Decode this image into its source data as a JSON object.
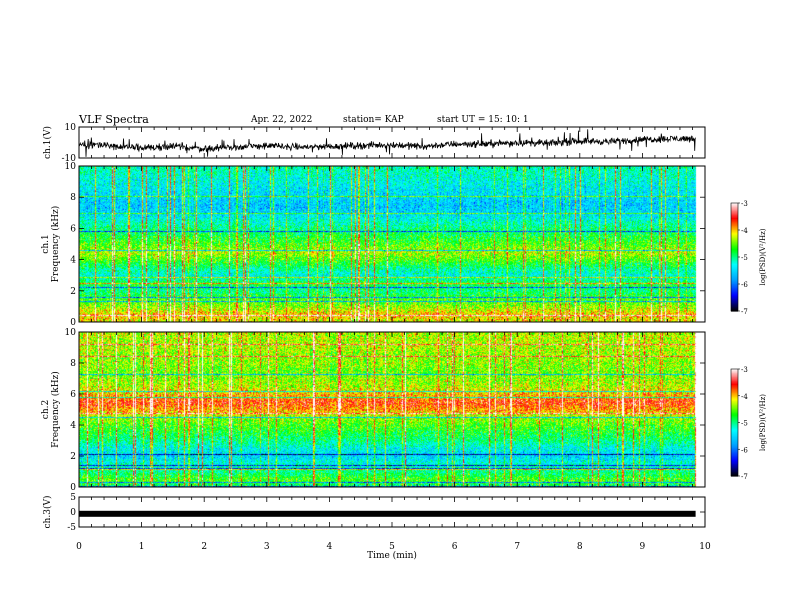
{
  "header": {
    "title": "VLF Spectra",
    "date": "Apr. 22, 2022",
    "station": "station= KAP",
    "start": "start  UT  =   15: 10: 1"
  },
  "chart_data": [
    {
      "type": "line",
      "panel": "ch1-waveform",
      "ylabel": "ch.1(V)",
      "ylim": [
        -10,
        10
      ],
      "yticks": [
        "10",
        "-10"
      ],
      "xlim": [
        0,
        10
      ],
      "data_end_min": 9.85,
      "color": "#000000",
      "trend": {
        "x": [
          0.0,
          0.3,
          0.6,
          1.0,
          1.5,
          2.0,
          2.5,
          3.0,
          3.5,
          4.0,
          4.5,
          5.0,
          5.5,
          6.0,
          6.5,
          7.0,
          7.5,
          8.0,
          8.5,
          9.0,
          9.5,
          9.85
        ],
        "y": [
          -2,
          -1,
          -3,
          -3.5,
          -2.5,
          -4,
          -3,
          -2,
          -3,
          -2.5,
          -2,
          -1.5,
          -2.5,
          -1,
          -1,
          0,
          -0.5,
          1,
          0.5,
          2,
          2.5,
          2.5
        ]
      }
    },
    {
      "type": "heatmap",
      "panel": "ch1-spectrogram",
      "ylabel": "ch.1\nFrequency (kHz)",
      "ylim": [
        0,
        10
      ],
      "yticks": [
        "0",
        "2",
        "4",
        "6",
        "8",
        "10"
      ],
      "xlim": [
        0,
        10
      ],
      "data_end_min": 9.85,
      "band_profile": {
        "freq_khz": [
          0,
          0.5,
          1,
          1.5,
          2,
          2.5,
          3,
          3.5,
          4,
          4.5,
          5,
          5.5,
          6,
          6.5,
          7,
          7.5,
          8,
          8.5,
          9,
          9.5,
          10
        ],
        "log_psd": [
          -4.2,
          -4.0,
          -4.4,
          -4.6,
          -5.0,
          -4.8,
          -5.3,
          -5.0,
          -4.6,
          -4.3,
          -4.6,
          -4.8,
          -5.0,
          -5.2,
          -5.5,
          -5.6,
          -5.5,
          -5.4,
          -5.3,
          -5.2,
          -5.1
        ]
      }
    },
    {
      "type": "heatmap",
      "panel": "ch2-spectrogram",
      "ylabel": "ch.2\nFrequency (kHz)",
      "ylim": [
        0,
        10
      ],
      "yticks": [
        "0",
        "2",
        "4",
        "6",
        "8",
        "10"
      ],
      "xlim": [
        0,
        10
      ],
      "data_end_min": 9.85,
      "band_profile": {
        "freq_khz": [
          0,
          0.5,
          1,
          1.5,
          2,
          2.5,
          3,
          3.5,
          4,
          4.5,
          5,
          5.5,
          6,
          6.5,
          7,
          7.5,
          8,
          8.5,
          9,
          9.5,
          10
        ],
        "log_psd": [
          -5.0,
          -4.6,
          -5.0,
          -5.2,
          -5.5,
          -5.3,
          -5.0,
          -4.8,
          -4.6,
          -4.4,
          -3.9,
          -3.6,
          -4.0,
          -4.3,
          -4.4,
          -4.5,
          -4.4,
          -4.4,
          -4.3,
          -4.3,
          -4.3
        ]
      }
    },
    {
      "type": "line",
      "panel": "ch3-waveform",
      "ylabel": "ch.3(V)",
      "ylim": [
        -5,
        5
      ],
      "yticks": [
        "5",
        "0",
        "-5"
      ],
      "xlim": [
        0,
        10
      ],
      "data_end_min": 9.85,
      "band": [
        -1.6,
        0.4
      ],
      "color": "#000000"
    }
  ],
  "colorbar": {
    "label": "log(PSD)(V²/Hz)",
    "range": [
      -7,
      -3
    ],
    "ticks": [
      "-3",
      "-4",
      "-5",
      "-6",
      "-7"
    ],
    "colors": [
      "#000000",
      "#0000ff",
      "#00a0ff",
      "#00ffff",
      "#00ff00",
      "#ffff00",
      "#ff0000",
      "#ffffff"
    ]
  },
  "xaxis": {
    "label": "Time  (min)",
    "ticks": [
      "0",
      "1",
      "2",
      "3",
      "4",
      "5",
      "6",
      "7",
      "8",
      "9",
      "10"
    ]
  }
}
